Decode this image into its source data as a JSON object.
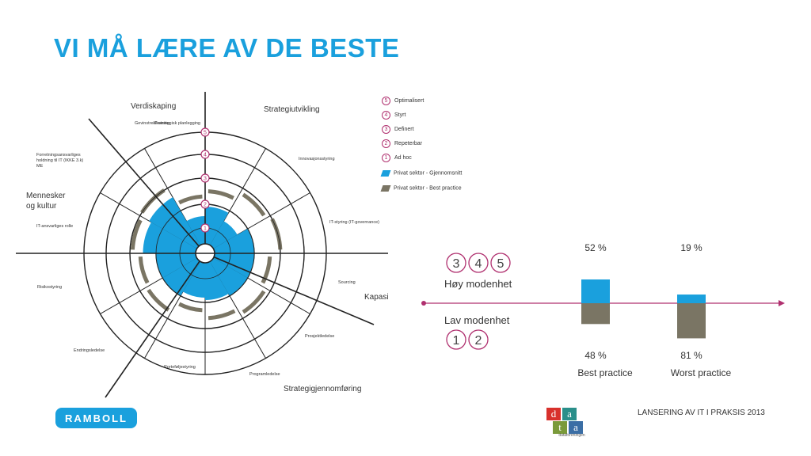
{
  "slide": {
    "title": "VI MÅ LÆRE AV DE BESTE",
    "footer_text": "LANSERING AV IT I PRAKSIS 2013",
    "logo_left": "RAMBOLL",
    "logo_right": {
      "letters": [
        "d",
        "a",
        "t",
        "a"
      ],
      "caption": "dataforeningen"
    }
  },
  "colors": {
    "title": "#1aa0dd",
    "average": "#1aa0dd",
    "best_practice": "#7a7564",
    "marker": "#b0306f"
  },
  "legend": {
    "levels": [
      {
        "n": "5",
        "label": "Optimalisert"
      },
      {
        "n": "4",
        "label": "Styrt"
      },
      {
        "n": "3",
        "label": "Definert"
      },
      {
        "n": "2",
        "label": "Repeterbar"
      },
      {
        "n": "1",
        "label": "Ad hoc"
      }
    ],
    "series": [
      {
        "label": "Privat sektor - Gjennomsnitt"
      },
      {
        "label": "Privat sektor - Best practice"
      }
    ]
  },
  "chart_data": [
    {
      "type": "radar",
      "ring_labels": [
        "1",
        "2",
        "3",
        "4",
        "5"
      ],
      "quadrants": [
        "Strategiutvikling",
        "Kapasitet",
        "Strategigjennomføring",
        "Mennesker og kultur",
        "Verdiskaping"
      ],
      "axes": [
        "IT-strategisk planlegging",
        "Innovasjonsstyring",
        "IT-styring (IT-governance)",
        "Sourcing",
        "Prosjektledelse",
        "Programledelse",
        "Porteføljestyring",
        "Endringsledelse",
        "Risikostyring",
        "IT-ansvarliges rolle",
        "Forretningsansvarliges holdning til IT (IKKE 3.k) ME",
        "Gevinstrealisering"
      ],
      "series": [
        {
          "name": "Privat sektor - Gjennomsnitt",
          "values": [
            1.9,
            1.5,
            2.0,
            2.0,
            2.0,
            1.9,
            1.8,
            2.0,
            2.0,
            2.5,
            2.6,
            1.5
          ]
        },
        {
          "name": "Privat sektor - Best practice",
          "values": [
            2.5,
            2.8,
            3.0,
            2.6,
            2.8,
            2.6,
            2.3,
            2.7,
            2.6,
            2.9,
            3.0,
            2.3
          ]
        }
      ]
    },
    {
      "type": "bar",
      "categories": [
        "Best practice",
        "Worst practice"
      ],
      "series": [
        {
          "name": "Høy modenhet",
          "values": [
            52,
            19
          ]
        },
        {
          "name": "Lav modenhet",
          "values": [
            48,
            81
          ]
        }
      ],
      "top_labels": [
        "52 %",
        "19 %"
      ],
      "bottom_labels": [
        "48 %",
        "81 %"
      ],
      "high_levels": [
        "3",
        "4",
        "5"
      ],
      "low_levels": [
        "1",
        "2"
      ]
    }
  ]
}
